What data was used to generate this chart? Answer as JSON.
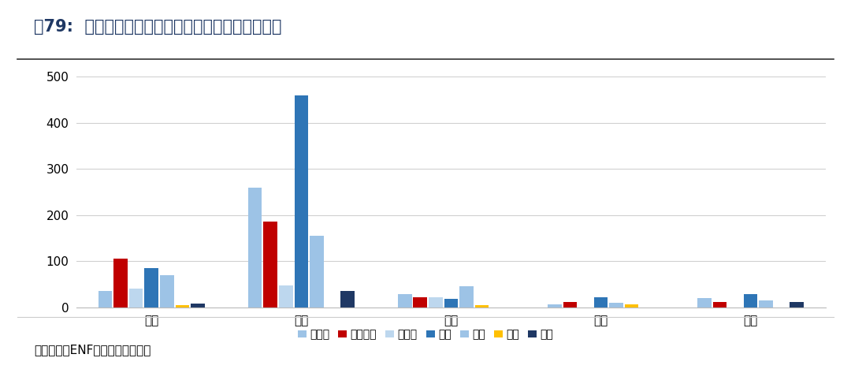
{
  "title": "图79:  阳光电源与同业经销商数量对比（单位：家）",
  "source_text": "数据来源：ENF，东吴证券研究所",
  "categories": [
    "亚太",
    "欧洲",
    "美洲",
    "中东",
    "其他"
  ],
  "series": [
    {
      "name": "比亚迪",
      "color": "#9DC3E6",
      "values": [
        35,
        260,
        28,
        7,
        20
      ]
    },
    {
      "name": "阳光电源",
      "color": "#C00000",
      "values": [
        105,
        185,
        22,
        12,
        12
      ]
    },
    {
      "name": "特斯拉",
      "color": "#BDD7EE",
      "values": [
        40,
        48,
        22,
        0,
        0
      ]
    },
    {
      "name": "华为",
      "color": "#2E75B6",
      "values": [
        85,
        460,
        18,
        22,
        28
      ]
    },
    {
      "name": "锦浪",
      "color": "#9DC3E6",
      "values": [
        70,
        155,
        45,
        10,
        14
      ]
    },
    {
      "name": "上能",
      "color": "#FFC000",
      "values": [
        5,
        0,
        4,
        6,
        0
      ]
    },
    {
      "name": "德业",
      "color": "#1F3864",
      "values": [
        8,
        35,
        0,
        0,
        12
      ]
    }
  ],
  "ylim": [
    0,
    500
  ],
  "yticks": [
    0,
    100,
    200,
    300,
    400,
    500
  ],
  "background_color": "#FFFFFF",
  "plot_bg_color": "#FFFFFF",
  "grid_color": "#D0D0D0",
  "title_color": "#1F3864",
  "title_fontsize": 15,
  "axis_fontsize": 11,
  "legend_fontsize": 10
}
